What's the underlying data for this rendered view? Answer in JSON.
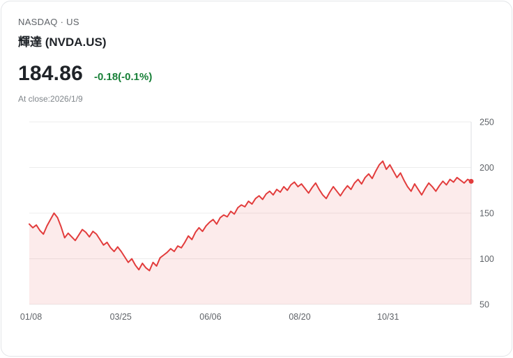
{
  "header": {
    "exchange_line": "NASDAQ  ·  US",
    "name": "輝達 (NVDA.US)",
    "price": "184.86",
    "change": "-0.18(-0.1%)",
    "close_label": "At close:2026/1/9"
  },
  "colors": {
    "change_green": "#188038",
    "line_red": "#e23c3c",
    "area_pink": "rgba(226,60,60,0.10)",
    "grid": "#ececec",
    "axis_line": "#dcdfe3"
  },
  "chart_data": {
    "type": "area",
    "title": "NVDA.US price history 01/08 - close 2026/1/9",
    "xlabel": "",
    "ylabel": "",
    "ylim": [
      50,
      250
    ],
    "y_ticks": [
      250,
      200,
      150,
      100,
      50
    ],
    "x_ticks": [
      {
        "label": "01/08",
        "pos": 0.004
      },
      {
        "label": "03/25",
        "pos": 0.207
      },
      {
        "label": "06/06",
        "pos": 0.41
      },
      {
        "label": "08/20",
        "pos": 0.612
      },
      {
        "label": "10/31",
        "pos": 0.812
      }
    ],
    "legend": [],
    "grid": true,
    "values": [
      138,
      134,
      137,
      131,
      127,
      136,
      143,
      150,
      145,
      135,
      123,
      128,
      124,
      120,
      126,
      132,
      129,
      124,
      130,
      127,
      121,
      115,
      118,
      112,
      108,
      113,
      108,
      102,
      96,
      100,
      93,
      88,
      95,
      90,
      87,
      96,
      92,
      101,
      104,
      107,
      111,
      108,
      114,
      112,
      118,
      125,
      121,
      129,
      134,
      130,
      136,
      140,
      143,
      138,
      145,
      148,
      146,
      152,
      149,
      156,
      159,
      157,
      163,
      160,
      166,
      169,
      165,
      171,
      174,
      170,
      176,
      173,
      179,
      175,
      181,
      184,
      179,
      182,
      177,
      172,
      178,
      183,
      176,
      170,
      166,
      173,
      179,
      174,
      169,
      175,
      180,
      176,
      183,
      187,
      182,
      189,
      193,
      188,
      196,
      203,
      207,
      198,
      203,
      196,
      189,
      194,
      186,
      179,
      174,
      182,
      176,
      170,
      177,
      183,
      179,
      174,
      180,
      185,
      181,
      187,
      184,
      189,
      186,
      183,
      187,
      184.86
    ]
  }
}
